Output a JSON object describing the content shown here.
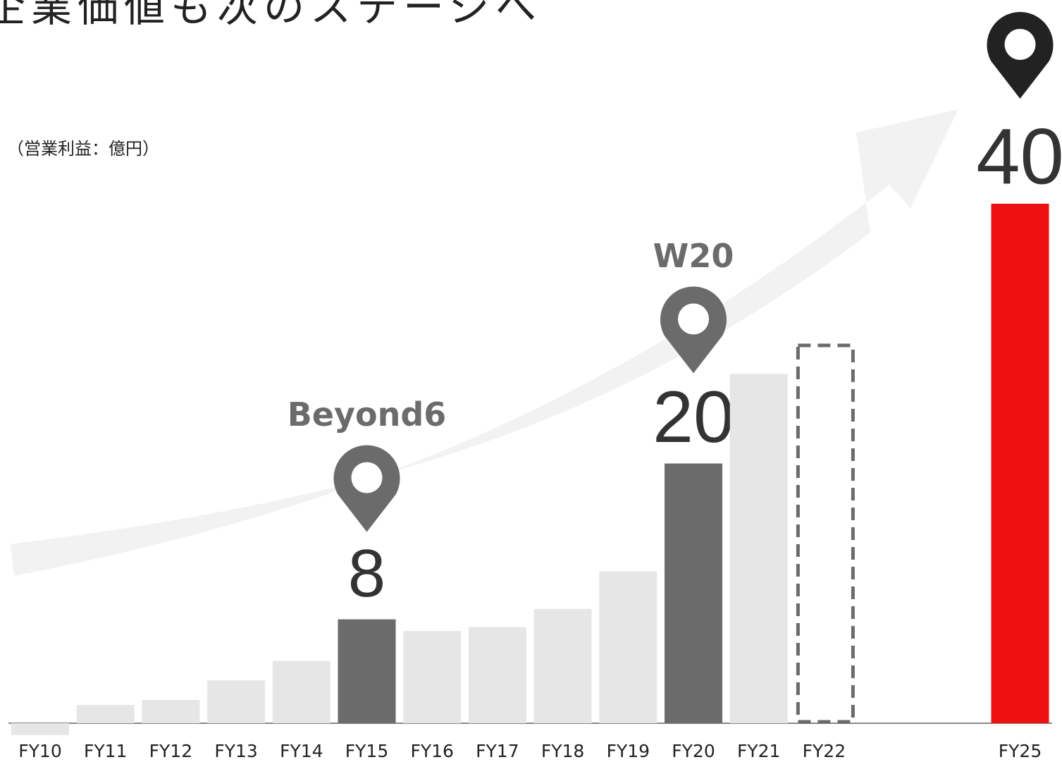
{
  "chart_data": {
    "type": "bar",
    "title": "企業価値も次のステージへ",
    "subtitle": "（営業利益：億円）",
    "categories": [
      "FY10",
      "FY11",
      "FY12",
      "FY13",
      "FY14",
      "FY15",
      "FY16",
      "FY17",
      "FY18",
      "FY19",
      "FY20",
      "FY21",
      "FY22",
      null,
      null,
      "FY25"
    ],
    "values": [
      -0.9,
      1.4,
      1.8,
      3.3,
      4.8,
      8,
      7.1,
      7.4,
      8.8,
      11.7,
      20,
      26.9,
      29.2,
      null,
      null,
      40
    ],
    "colors": [
      "#e6e6e6",
      "#e6e6e6",
      "#e6e6e6",
      "#e6e6e6",
      "#e6e6e6",
      "#6b6b6b",
      "#e6e6e6",
      "#e6e6e6",
      "#e6e6e6",
      "#e6e6e6",
      "#6b6b6b",
      "#e6e6e6",
      null,
      null,
      null,
      "#ee1111"
    ],
    "dashed_categories": [
      "FY22"
    ],
    "labeled_categories": [
      "FY15",
      "FY20",
      "FY25"
    ],
    "annotations": [
      {
        "text": "Beyond6",
        "category": "FY15"
      },
      {
        "text": "W20",
        "category": "FY20"
      }
    ],
    "ylim": [
      0,
      40
    ]
  }
}
